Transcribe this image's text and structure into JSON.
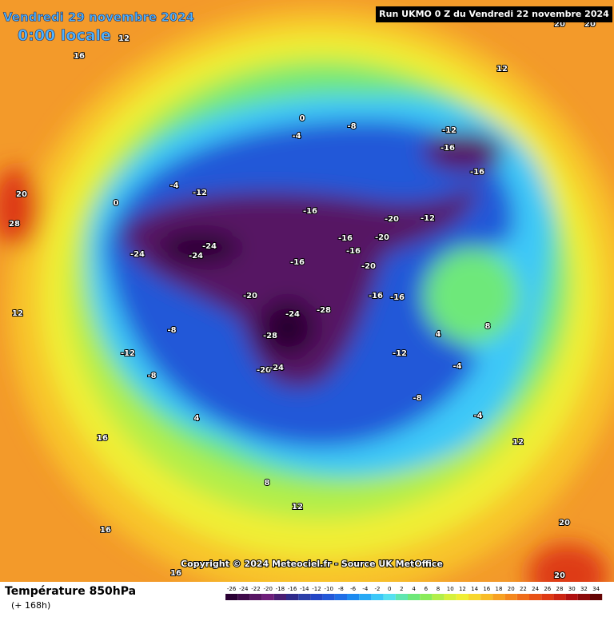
{
  "header": {
    "title": "Vendredi 29 novembre 2024",
    "time": "0:00 locale",
    "run": "Run UKMO 0 Z du Vendredi 22 novembre 2024"
  },
  "credit": "Copyright © 2024 Meteociel.fr - Source UK MetOffice",
  "footer": {
    "title": "Température 850hPa",
    "subtitle": "(+ 168h)"
  },
  "legend": {
    "ticks": [
      -26,
      -24,
      -22,
      -20,
      -18,
      -16,
      -14,
      -12,
      -10,
      -8,
      -6,
      -4,
      -2,
      0,
      2,
      4,
      6,
      8,
      10,
      12,
      14,
      16,
      18,
      20,
      22,
      24,
      26,
      28,
      30,
      32,
      34
    ],
    "colors": [
      "#2a0033",
      "#3f0a4a",
      "#571563",
      "#6e1f7a",
      "#4a1e73",
      "#2f2a8a",
      "#2c3fa8",
      "#2446c5",
      "#2358d8",
      "#1f6ee6",
      "#1c8af0",
      "#27a9f5",
      "#3cc8f8",
      "#56e0f0",
      "#5fe6b0",
      "#6ee87a",
      "#8aeb5a",
      "#b2ee4a",
      "#d6f03c",
      "#f0ee35",
      "#f7d72e",
      "#f8bc28",
      "#f7a122",
      "#f4871d",
      "#ef6c19",
      "#e85216",
      "#de3a14",
      "#cc2412",
      "#b01010",
      "#8c0a0a",
      "#650505"
    ]
  },
  "map": {
    "labels": [
      -24,
      -24,
      -24,
      -28,
      -28,
      -24,
      -20,
      -20,
      -24,
      -16,
      -16,
      -16,
      -16,
      -20,
      -16,
      -16,
      -12,
      -12,
      -8,
      -8,
      -20,
      -20,
      -12,
      -16,
      -12,
      -16,
      -8,
      -4,
      0,
      4,
      -4,
      -8,
      -4,
      4,
      8,
      12,
      12,
      16,
      16,
      20,
      20,
      16,
      12,
      8,
      12,
      20,
      20,
      -12,
      -4,
      0,
      20,
      28,
      16,
      12
    ]
  }
}
